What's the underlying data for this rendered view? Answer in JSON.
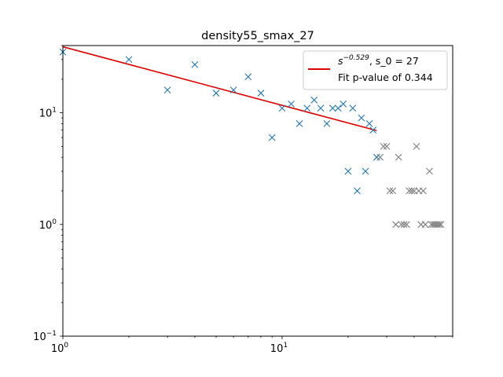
{
  "chart_data": {
    "type": "scatter",
    "title": "density55_smax_27",
    "xlabel": "",
    "ylabel": "",
    "xscale": "log",
    "yscale": "log",
    "xlim": [
      1,
      60
    ],
    "ylim": [
      0.1,
      40
    ],
    "x_ticks": [
      {
        "value": 1,
        "label": "10",
        "exp": "0"
      },
      {
        "value": 10,
        "label": "10",
        "exp": "1"
      }
    ],
    "y_ticks": [
      {
        "value": 0.1,
        "label": "10",
        "exp": "−1"
      },
      {
        "value": 1,
        "label": "10",
        "exp": "0"
      },
      {
        "value": 10,
        "label": "10",
        "exp": "1"
      }
    ],
    "grid": false,
    "legend_position": "top-right",
    "colors": {
      "fitted": "#1f77b4",
      "unfitted": "#7f7f7f",
      "fit_line": "#e00000"
    },
    "series": [
      {
        "marker": "x",
        "role": "fitted",
        "points": [
          [
            1,
            35
          ],
          [
            2,
            30
          ],
          [
            3,
            16
          ],
          [
            4,
            27
          ],
          [
            5,
            15
          ],
          [
            6,
            16
          ],
          [
            7,
            21
          ],
          [
            8,
            15
          ],
          [
            9,
            6
          ],
          [
            10,
            11
          ],
          [
            11,
            12
          ],
          [
            12,
            8
          ],
          [
            13,
            11
          ],
          [
            14,
            13
          ],
          [
            15,
            11
          ],
          [
            16,
            8
          ],
          [
            17,
            11
          ],
          [
            18,
            11
          ],
          [
            19,
            12
          ],
          [
            20,
            3
          ],
          [
            21,
            11
          ],
          [
            22,
            2
          ],
          [
            23,
            9
          ],
          [
            24,
            3
          ],
          [
            25,
            8
          ],
          [
            26,
            7
          ],
          [
            27,
            4
          ]
        ]
      },
      {
        "marker": "x",
        "role": "unfitted",
        "points": [
          [
            28,
            4
          ],
          [
            29,
            5
          ],
          [
            30,
            5
          ],
          [
            31,
            2
          ],
          [
            32,
            2
          ],
          [
            33,
            1
          ],
          [
            34,
            4
          ],
          [
            35,
            1
          ],
          [
            36,
            1
          ],
          [
            37,
            1
          ],
          [
            38,
            2
          ],
          [
            39,
            2
          ],
          [
            40,
            2
          ],
          [
            41,
            5
          ],
          [
            42,
            2
          ],
          [
            43,
            1
          ],
          [
            44,
            2
          ],
          [
            45,
            1
          ],
          [
            47,
            3
          ],
          [
            48,
            1
          ],
          [
            49,
            1
          ],
          [
            50,
            1
          ],
          [
            51,
            1
          ],
          [
            52,
            1
          ],
          [
            53,
            1
          ]
        ]
      }
    ],
    "fit_line": {
      "x": [
        1,
        27
      ],
      "y": [
        39,
        6.93
      ]
    },
    "legend": {
      "fit_label_base": "s",
      "fit_label_exp": "−0.529",
      "fit_label_rest": ", s_0 = 27",
      "pvalue_label": "Fit p-value of 0.344"
    }
  }
}
